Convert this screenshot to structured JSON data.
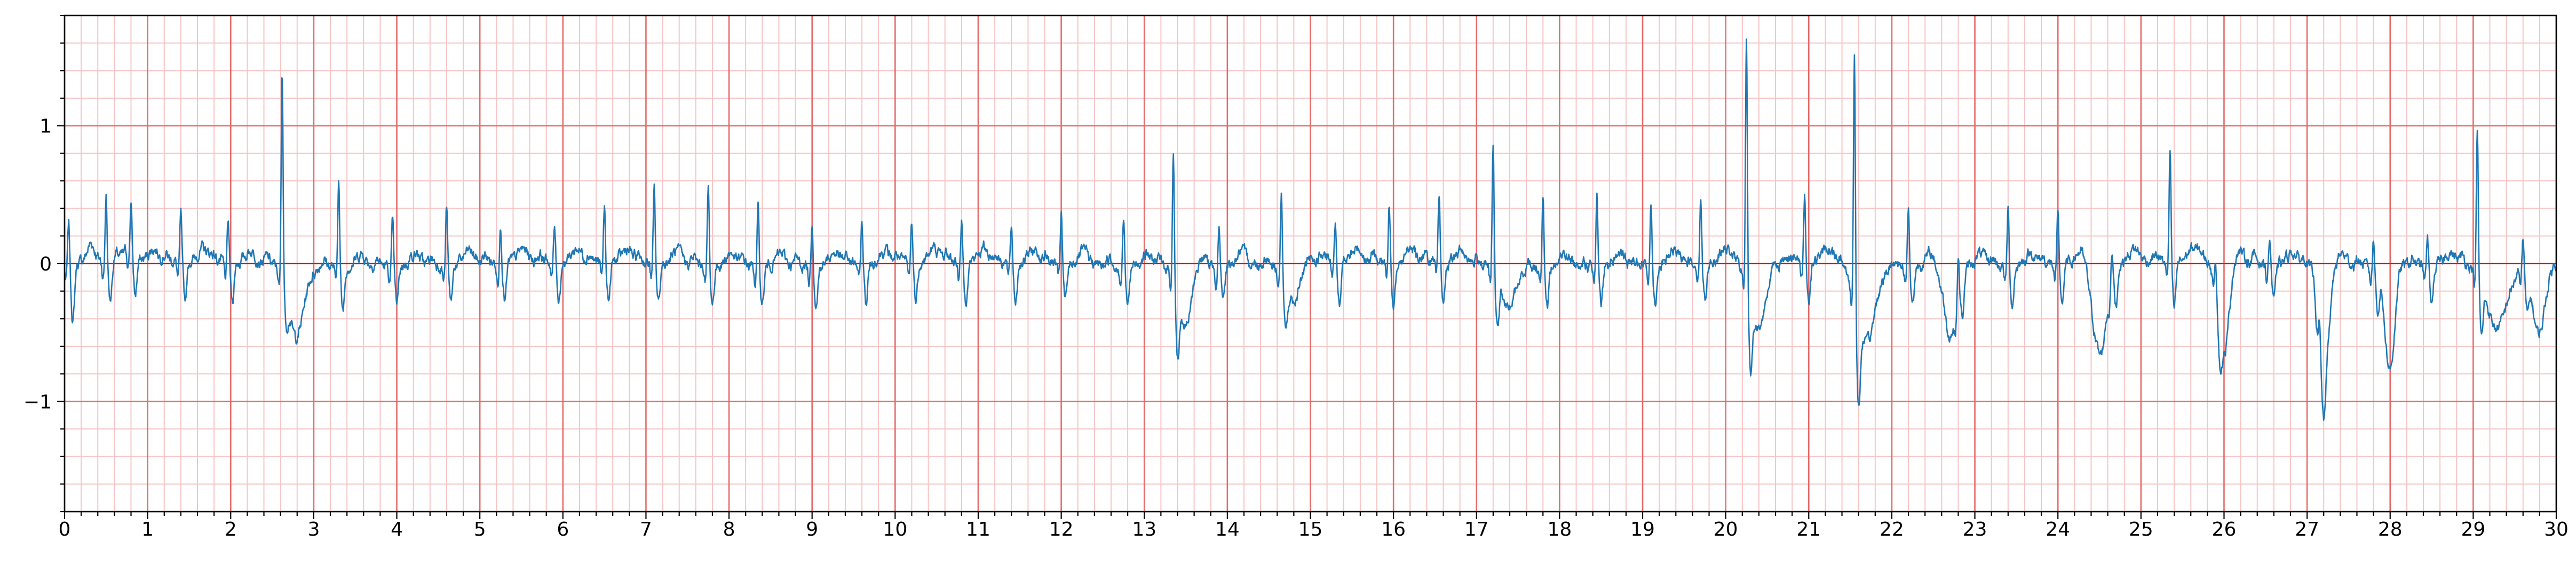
{
  "chart_data": {
    "type": "line",
    "title": "",
    "xlabel": "",
    "ylabel": "",
    "xlim": [
      0,
      30
    ],
    "ylim": [
      -1.8,
      1.8
    ],
    "x_ticks": [
      0,
      1,
      2,
      3,
      4,
      5,
      6,
      7,
      8,
      9,
      10,
      11,
      12,
      13,
      14,
      15,
      16,
      17,
      18,
      19,
      20,
      21,
      22,
      23,
      24,
      25,
      26,
      27,
      28,
      29,
      30
    ],
    "x_tick_labels": [
      "0",
      "1",
      "2",
      "3",
      "4",
      "5",
      "6",
      "7",
      "8",
      "9",
      "10",
      "11",
      "12",
      "13",
      "14",
      "15",
      "16",
      "17",
      "18",
      "19",
      "20",
      "21",
      "22",
      "23",
      "24",
      "25",
      "26",
      "27",
      "28",
      "29",
      "30"
    ],
    "y_ticks": [
      -1,
      0,
      1
    ],
    "y_tick_labels": [
      "−1",
      "0",
      "1"
    ],
    "major_grid": {
      "x_step": 1,
      "y_step": 1,
      "color": "#e66a6a"
    },
    "minor_grid": {
      "x_step": 0.2,
      "y_step": 0.2,
      "color": "#f7c4c4"
    },
    "line_color": "#1f77b4",
    "baseline": {
      "y": 0,
      "color": "#555555"
    },
    "series": [
      {
        "name": "",
        "beats": [
          {
            "t": 0.05,
            "amp": 0.3,
            "s": -0.42
          },
          {
            "t": 0.5,
            "amp": 0.5
          },
          {
            "t": 0.8,
            "amp": 0.36
          },
          {
            "t": 1.4,
            "amp": 0.35
          },
          {
            "t": 1.97,
            "amp": 0.3
          },
          {
            "t": 2.62,
            "amp": 1.52,
            "s": -0.2
          },
          {
            "t": 3.3,
            "amp": 0.65,
            "s": -0.32
          },
          {
            "t": 3.95,
            "amp": 0.34
          },
          {
            "t": 4.6,
            "amp": 0.43
          },
          {
            "t": 5.25,
            "amp": 0.28
          },
          {
            "t": 5.9,
            "amp": 0.25
          },
          {
            "t": 6.5,
            "amp": 0.4
          },
          {
            "t": 7.1,
            "amp": 0.54
          },
          {
            "t": 7.75,
            "amp": 0.57
          },
          {
            "t": 8.35,
            "amp": 0.42
          },
          {
            "t": 9.0,
            "amp": 0.35
          },
          {
            "t": 9.6,
            "amp": 0.32
          },
          {
            "t": 10.2,
            "amp": 0.3
          },
          {
            "t": 10.8,
            "amp": 0.28
          },
          {
            "t": 11.4,
            "amp": 0.27
          },
          {
            "t": 12.0,
            "amp": 0.37
          },
          {
            "t": 12.75,
            "amp": 0.35
          },
          {
            "t": 13.35,
            "amp": 0.94,
            "s": -0.46
          },
          {
            "t": 13.9,
            "amp": 0.3
          },
          {
            "t": 14.65,
            "amp": 0.61,
            "s": -0.32
          },
          {
            "t": 15.3,
            "amp": 0.3
          },
          {
            "t": 15.95,
            "amp": 0.4
          },
          {
            "t": 16.55,
            "amp": 0.48
          },
          {
            "t": 17.2,
            "amp": 0.92,
            "s": -0.35
          },
          {
            "t": 17.8,
            "amp": 0.55
          },
          {
            "t": 18.45,
            "amp": 0.48
          },
          {
            "t": 19.1,
            "amp": 0.47
          },
          {
            "t": 19.7,
            "amp": 0.5
          },
          {
            "t": 20.25,
            "amp": 1.8,
            "s": -0.55
          },
          {
            "t": 20.95,
            "amp": 0.52
          },
          {
            "t": 21.55,
            "amp": 1.8,
            "s": -0.63
          },
          {
            "t": 22.2,
            "amp": 0.42
          },
          {
            "t": 22.8,
            "amp": 0.3
          },
          {
            "t": 23.4,
            "amp": 0.42
          },
          {
            "t": 24.0,
            "amp": 0.35
          },
          {
            "t": 24.65,
            "amp": 0.2
          },
          {
            "t": 25.35,
            "amp": 0.8,
            "s": -0.35
          },
          {
            "t": 25.9,
            "amp": 0.2
          },
          {
            "t": 26.55,
            "amp": 0.2
          },
          {
            "t": 27.15,
            "amp": 0.2
          },
          {
            "t": 27.8,
            "amp": 0.2
          },
          {
            "t": 28.45,
            "amp": 0.2
          },
          {
            "t": 29.05,
            "amp": 1.04,
            "s": -0.4
          },
          {
            "t": 29.6,
            "amp": 0.22
          }
        ],
        "deflections": [
          {
            "t": 2.8,
            "amp": -0.55,
            "w": 0.1
          },
          {
            "t": 13.5,
            "amp": -0.45,
            "w": 0.08
          },
          {
            "t": 14.8,
            "amp": -0.3,
            "w": 0.1
          },
          {
            "t": 17.4,
            "amp": -0.35,
            "w": 0.1
          },
          {
            "t": 20.4,
            "amp": -0.5,
            "w": 0.1
          },
          {
            "t": 21.7,
            "amp": -0.6,
            "w": 0.12
          },
          {
            "t": 22.7,
            "amp": -0.5,
            "w": 0.08
          },
          {
            "t": 24.5,
            "amp": -0.7,
            "w": 0.08
          },
          {
            "t": 26.0,
            "amp": -0.68,
            "w": 0.06
          },
          {
            "t": 27.2,
            "amp": -0.85,
            "w": 0.06
          },
          {
            "t": 28.0,
            "amp": -0.8,
            "w": 0.06
          },
          {
            "t": 29.3,
            "amp": -0.55,
            "w": 0.12
          },
          {
            "t": 29.8,
            "amp": -0.57,
            "w": 0.08
          }
        ]
      }
    ]
  }
}
